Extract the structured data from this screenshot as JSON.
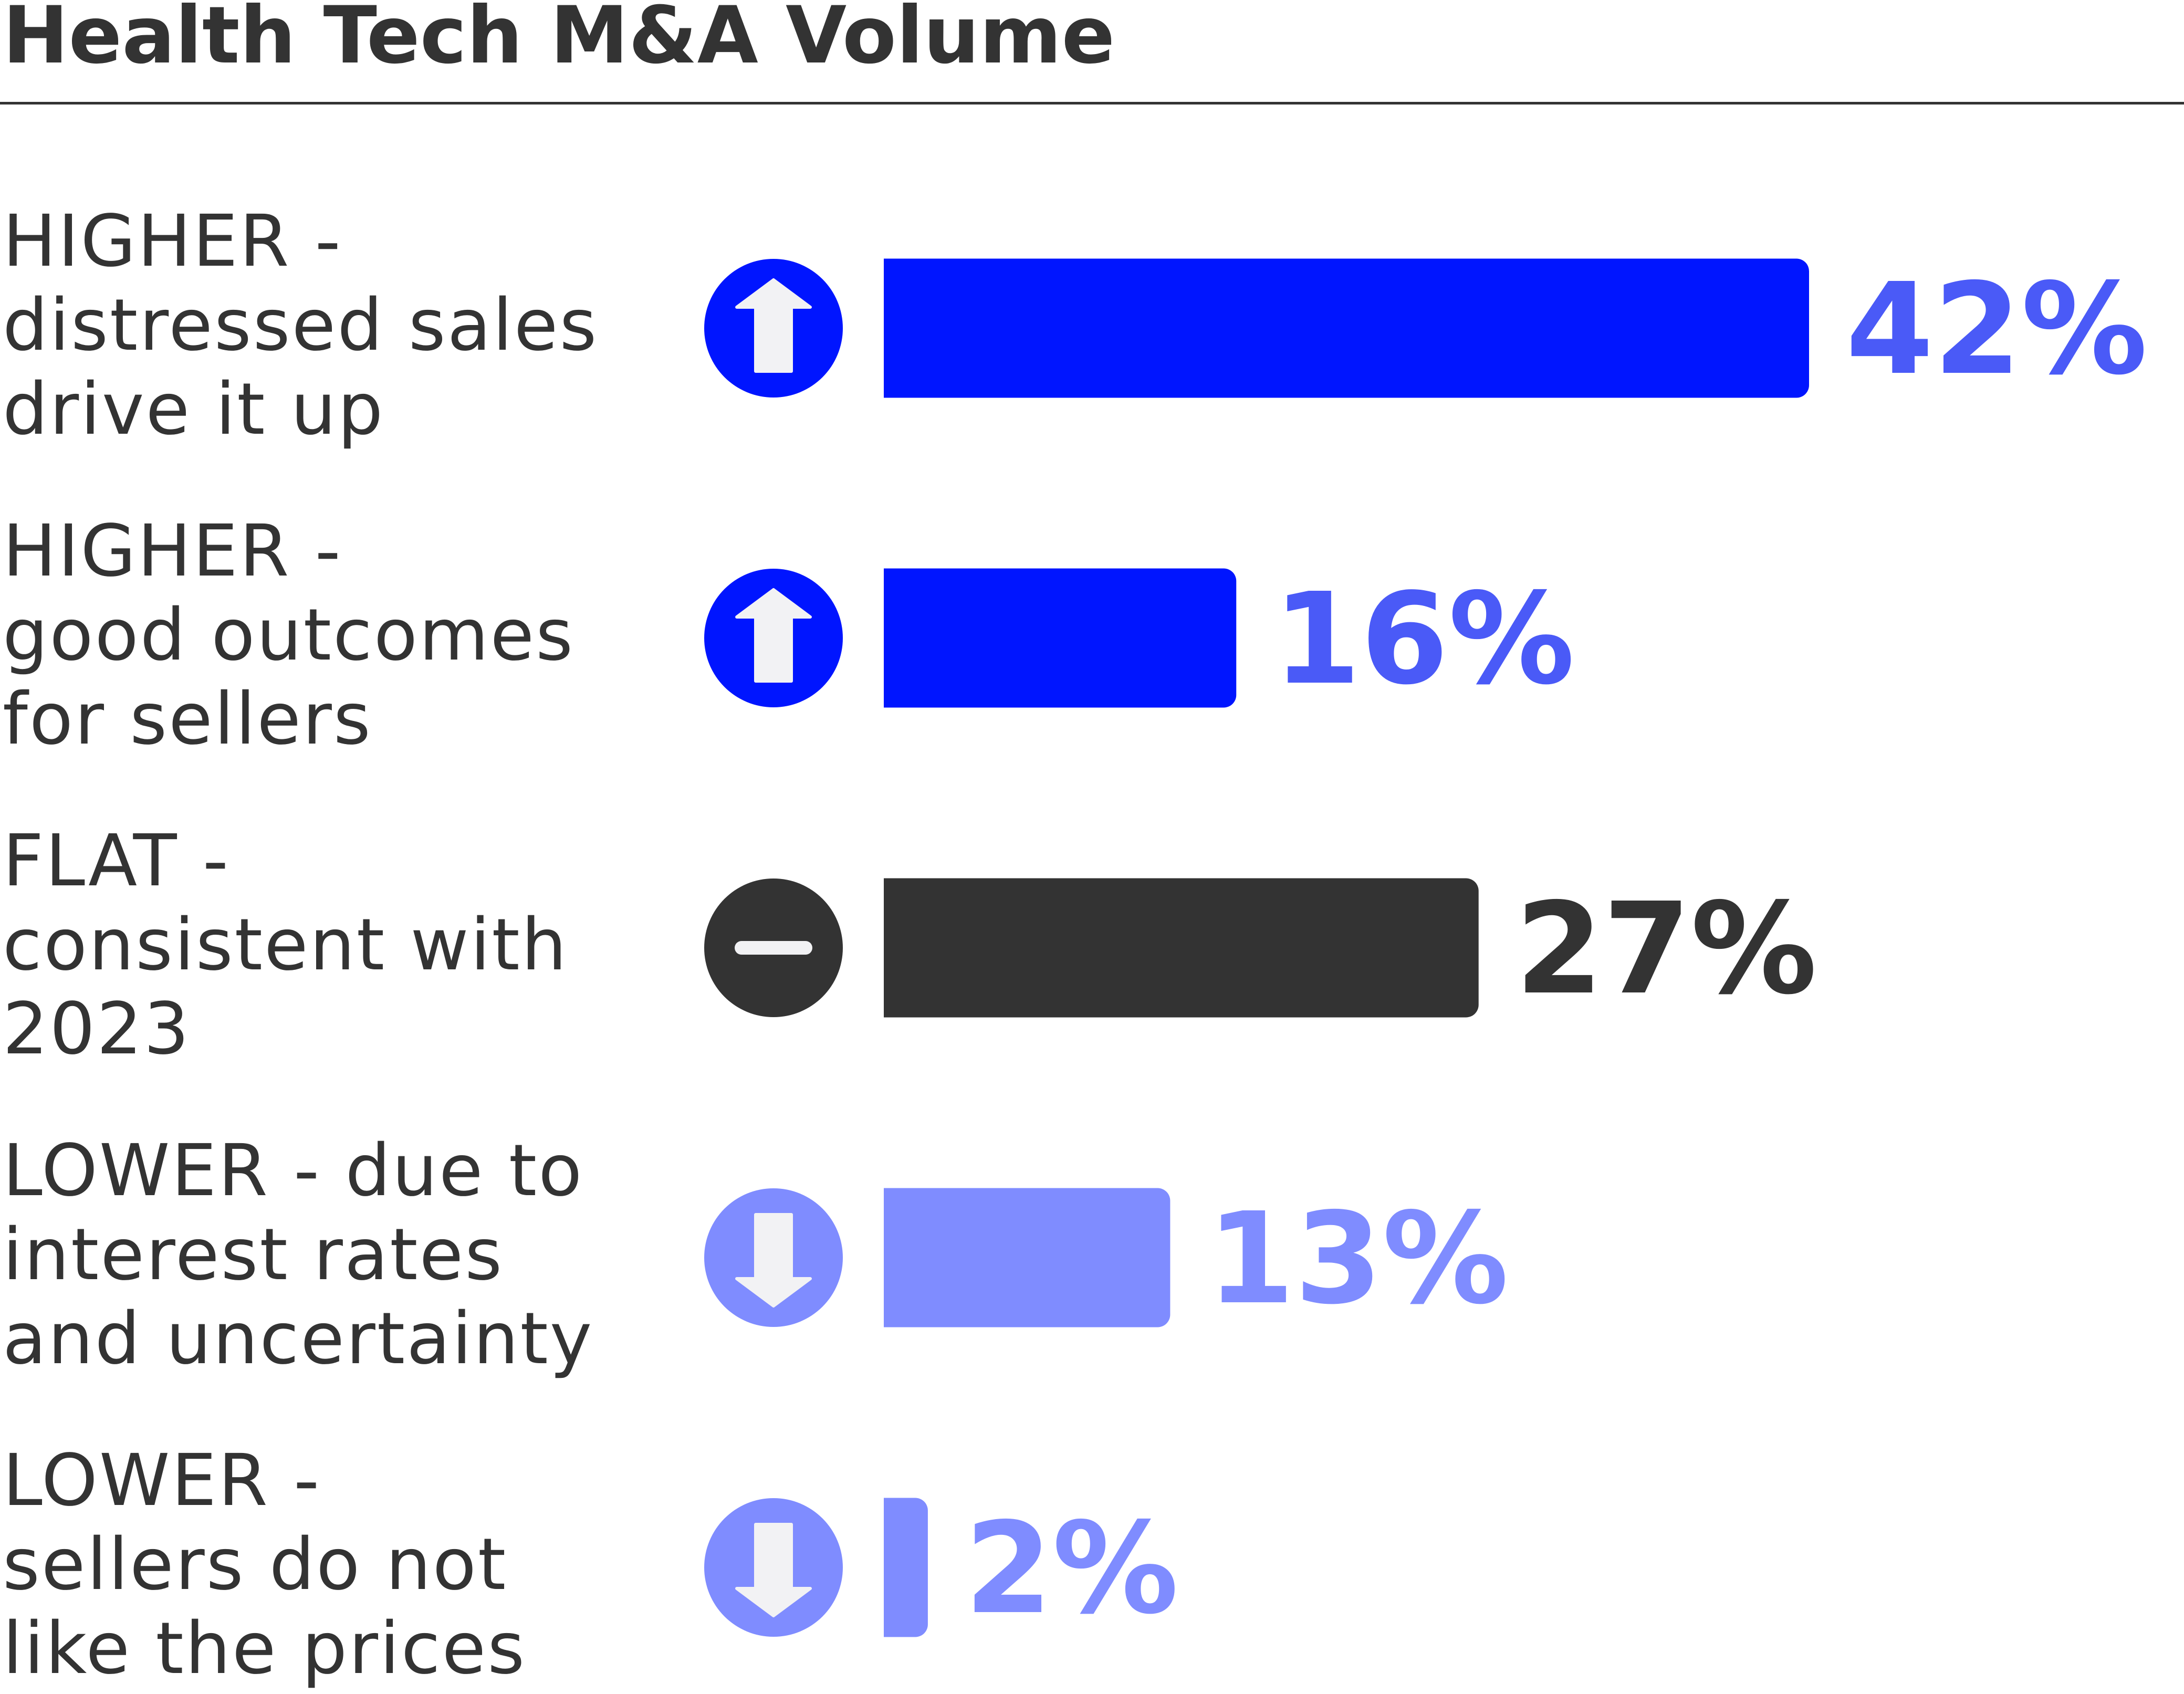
{
  "title": "Health Tech M&A Volume",
  "chart_data": {
    "type": "bar",
    "orientation": "horizontal",
    "title": "Health Tech M&A Volume",
    "categories": [
      "HIGHER - distressed sales drive it up",
      "HIGHER - good outcomes for sellers",
      "FLAT - consistent with 2023",
      "LOWER - due to interest rates and uncertainty",
      "LOWER - sellers do not like the prices"
    ],
    "values": [
      42,
      16,
      27,
      13,
      2
    ],
    "value_labels": [
      "42%",
      "16%",
      "27%",
      "13%",
      "2%"
    ],
    "unit": "%",
    "xlim": [
      0,
      42
    ],
    "rows": [
      {
        "label_lines": [
          "HIGHER -",
          "distressed sales",
          "drive it up"
        ],
        "value": 42,
        "value_label": "42%",
        "icon": "arrow-up-icon",
        "bar_color": "#0015FF",
        "label_color": "#4A5AF7",
        "icon_bg": "#0015FF"
      },
      {
        "label_lines": [
          "HIGHER -",
          "good outcomes",
          "for sellers"
        ],
        "value": 16,
        "value_label": "16%",
        "icon": "arrow-up-icon",
        "bar_color": "#0015FF",
        "label_color": "#4A5AF7",
        "icon_bg": "#0015FF"
      },
      {
        "label_lines": [
          "FLAT -",
          "consistent with",
          "2023"
        ],
        "value": 27,
        "value_label": "27%",
        "icon": "minus-icon",
        "bar_color": "#333333",
        "label_color": "#333333",
        "icon_bg": "#333333"
      },
      {
        "label_lines": [
          "LOWER - due to",
          "interest rates",
          "and uncertainty"
        ],
        "value": 13,
        "value_label": "13%",
        "icon": "arrow-down-icon",
        "bar_color": "#7F8CFF",
        "label_color": "#7F8CFF",
        "icon_bg": "#7F8CFF"
      },
      {
        "label_lines": [
          "LOWER -",
          "sellers do not",
          "like the prices"
        ],
        "value": 2,
        "value_label": "2%",
        "icon": "arrow-down-icon",
        "bar_color": "#7F8CFF",
        "label_color": "#7F8CFF",
        "icon_bg": "#7F8CFF"
      }
    ]
  }
}
